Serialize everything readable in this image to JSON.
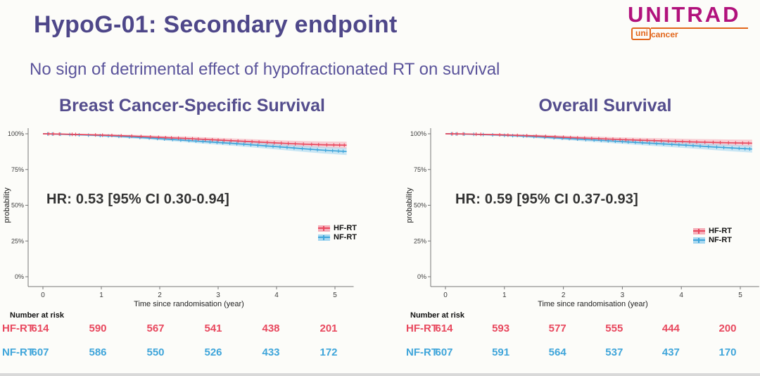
{
  "header": {
    "title": "HypoG-01: Secondary endpoint",
    "subtitle": "No sign of detrimental effect of hypofractionated RT on survival"
  },
  "logo": {
    "brand": "UNITRAD",
    "sub_prefix": "uni",
    "sub_suffix": "cancer"
  },
  "colors": {
    "hf_rt": "#E8485E",
    "nf_rt": "#3FA5DA",
    "hf_band": "#F5AEB9",
    "nf_band": "#A6D7F0",
    "heading_purple": "#544D8D",
    "brand_magenta": "#B1127C",
    "brand_orange": "#E2661B"
  },
  "chart_data": [
    {
      "type": "line",
      "title": "Breast Cancer-Specific Survival",
      "hr_text": "HR: 0.53 [95% CI 0.30-0.94]",
      "xlabel": "Time since randomisation (year)",
      "ylabel": "probability",
      "x_ticks": [
        "0",
        "1",
        "2",
        "3",
        "4",
        "5"
      ],
      "y_ticks": [
        "100%",
        "75%",
        "50%",
        "25%",
        "0%"
      ],
      "ylim": [
        0,
        100
      ],
      "xlim": [
        0,
        5.3
      ],
      "grid": false,
      "legend_position": "right-middle",
      "legend": [
        {
          "label": "HF-RT",
          "series": "hf"
        },
        {
          "label": "NF-RT",
          "series": "nf"
        }
      ],
      "series": [
        {
          "name": "HF-RT",
          "series": "hf",
          "points": [
            [
              0,
              100
            ],
            [
              0.3,
              99.8
            ],
            [
              0.6,
              99.5
            ],
            [
              0.9,
              99.2
            ],
            [
              1.2,
              98.8
            ],
            [
              1.5,
              98.4
            ],
            [
              1.8,
              97.9
            ],
            [
              2.1,
              97.3
            ],
            [
              2.4,
              96.8
            ],
            [
              2.7,
              96.2
            ],
            [
              3.0,
              95.6
            ],
            [
              3.3,
              95.0
            ],
            [
              3.6,
              94.4
            ],
            [
              3.9,
              93.8
            ],
            [
              4.2,
              93.2
            ],
            [
              4.5,
              92.7
            ],
            [
              4.8,
              92.3
            ],
            [
              5.2,
              92.0
            ]
          ],
          "censor_times": [
            0.1,
            0.18,
            0.28,
            0.5,
            0.56,
            0.9,
            1.02,
            1.18,
            1.34,
            1.52,
            1.68,
            1.84,
            1.98,
            2.1,
            2.2,
            2.32,
            2.44,
            2.56,
            2.66,
            2.78,
            2.9,
            3.0,
            3.1,
            3.22,
            3.34,
            3.46,
            3.58,
            3.7,
            3.84,
            3.96,
            4.08,
            4.2,
            4.32,
            4.46,
            4.6,
            4.72,
            4.86,
            4.98,
            5.08,
            5.16
          ]
        },
        {
          "name": "NF-RT",
          "series": "nf",
          "points": [
            [
              0,
              100
            ],
            [
              0.3,
              99.7
            ],
            [
              0.6,
              99.3
            ],
            [
              0.9,
              98.9
            ],
            [
              1.2,
              98.4
            ],
            [
              1.5,
              97.8
            ],
            [
              1.8,
              97.1
            ],
            [
              2.1,
              96.3
            ],
            [
              2.4,
              95.5
            ],
            [
              2.7,
              94.7
            ],
            [
              3.0,
              93.9
            ],
            [
              3.3,
              93.1
            ],
            [
              3.6,
              92.2
            ],
            [
              3.9,
              91.3
            ],
            [
              4.2,
              90.4
            ],
            [
              4.5,
              89.4
            ],
            [
              4.8,
              88.5
            ],
            [
              5.2,
              87.6
            ]
          ],
          "censor_times": [
            0.08,
            0.16,
            0.3,
            0.46,
            0.62,
            0.78,
            0.98,
            1.12,
            1.3,
            1.48,
            1.66,
            1.82,
            1.96,
            2.08,
            2.22,
            2.36,
            2.5,
            2.62,
            2.74,
            2.86,
            2.98,
            3.08,
            3.2,
            3.32,
            3.44,
            3.56,
            3.68,
            3.82,
            3.94,
            4.06,
            4.18,
            4.3,
            4.44,
            4.58,
            4.7,
            4.84,
            4.96,
            5.06,
            5.14
          ]
        }
      ],
      "risk_table": {
        "title": "Number at risk",
        "rows": [
          {
            "name": "HF-RT",
            "series": "hf",
            "values": [
              "614",
              "590",
              "567",
              "541",
              "438",
              "201"
            ]
          },
          {
            "name": "NF-RT",
            "series": "nf",
            "values": [
              "607",
              "586",
              "550",
              "526",
              "433",
              "172"
            ]
          }
        ]
      }
    },
    {
      "type": "line",
      "title": "Overall Survival",
      "hr_text": "HR: 0.59 [95% CI 0.37-0.93]",
      "xlabel": "Time since randomisation (year)",
      "ylabel": "probability",
      "x_ticks": [
        "0",
        "1",
        "2",
        "3",
        "4",
        "5"
      ],
      "y_ticks": [
        "100%",
        "75%",
        "50%",
        "25%",
        "0%"
      ],
      "ylim": [
        0,
        100
      ],
      "xlim": [
        0,
        5.3
      ],
      "grid": false,
      "legend_position": "right-middle",
      "legend": [
        {
          "label": "HF-RT",
          "series": "hf"
        },
        {
          "label": "NF-RT",
          "series": "nf"
        }
      ],
      "series": [
        {
          "name": "HF-RT",
          "series": "hf",
          "points": [
            [
              0,
              100
            ],
            [
              0.3,
              99.9
            ],
            [
              0.6,
              99.6
            ],
            [
              0.9,
              99.3
            ],
            [
              1.2,
              98.9
            ],
            [
              1.5,
              98.5
            ],
            [
              1.8,
              98.0
            ],
            [
              2.1,
              97.4
            ],
            [
              2.4,
              96.9
            ],
            [
              2.7,
              96.4
            ],
            [
              3.0,
              95.9
            ],
            [
              3.3,
              95.5
            ],
            [
              3.6,
              95.1
            ],
            [
              3.9,
              94.7
            ],
            [
              4.2,
              94.3
            ],
            [
              4.5,
              94.0
            ],
            [
              4.8,
              93.7
            ],
            [
              5.2,
              93.4
            ]
          ],
          "censor_times": [
            0.12,
            0.2,
            0.3,
            0.52,
            0.6,
            0.92,
            1.06,
            1.22,
            1.38,
            1.54,
            1.7,
            1.86,
            2.0,
            2.12,
            2.24,
            2.36,
            2.48,
            2.6,
            2.72,
            2.84,
            2.96,
            3.06,
            3.18,
            3.3,
            3.42,
            3.54,
            3.66,
            3.78,
            3.9,
            4.02,
            4.14,
            4.26,
            4.4,
            4.54,
            4.66,
            4.8,
            4.92,
            5.04,
            5.14
          ]
        },
        {
          "name": "NF-RT",
          "series": "nf",
          "points": [
            [
              0,
              100
            ],
            [
              0.3,
              99.8
            ],
            [
              0.6,
              99.5
            ],
            [
              0.9,
              99.1
            ],
            [
              1.2,
              98.6
            ],
            [
              1.5,
              98.0
            ],
            [
              1.8,
              97.3
            ],
            [
              2.1,
              96.6
            ],
            [
              2.4,
              95.9
            ],
            [
              2.7,
              95.2
            ],
            [
              3.0,
              94.5
            ],
            [
              3.3,
              93.8
            ],
            [
              3.6,
              93.1
            ],
            [
              3.9,
              92.4
            ],
            [
              4.2,
              91.7
            ],
            [
              4.5,
              90.9
            ],
            [
              4.8,
              90.2
            ],
            [
              5.2,
              89.3
            ]
          ],
          "censor_times": [
            0.1,
            0.18,
            0.32,
            0.48,
            0.64,
            0.8,
            1.0,
            1.14,
            1.32,
            1.5,
            1.68,
            1.84,
            1.98,
            2.1,
            2.24,
            2.38,
            2.52,
            2.64,
            2.76,
            2.88,
            3.0,
            3.1,
            3.22,
            3.34,
            3.46,
            3.58,
            3.7,
            3.84,
            3.96,
            4.08,
            4.2,
            4.32,
            4.46,
            4.6,
            4.72,
            4.86,
            4.98,
            5.08,
            5.16
          ]
        }
      ],
      "risk_table": {
        "title": "Number at risk",
        "rows": [
          {
            "name": "HF-RT",
            "series": "hf",
            "values": [
              "614",
              "593",
              "577",
              "555",
              "444",
              "200"
            ]
          },
          {
            "name": "NF-RT",
            "series": "nf",
            "values": [
              "607",
              "591",
              "564",
              "537",
              "437",
              "170"
            ]
          }
        ]
      }
    }
  ]
}
